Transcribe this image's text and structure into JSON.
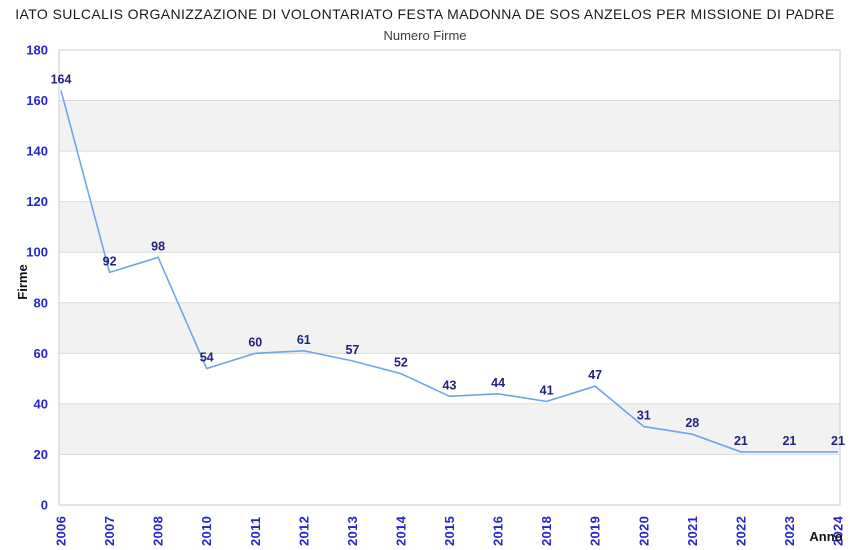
{
  "chart": {
    "title": "IATO SULCALIS ORGANIZZAZIONE DI VOLONTARIATO FESTA MADONNA DE SOS ANZELOS PER MISSIONE DI PADRE",
    "subtitle": "Numero Firme"
  },
  "chart_data": {
    "type": "line",
    "title": "IATO SULCALIS ORGANIZZAZIONE DI VOLONTARIATO FESTA MADONNA DE SOS ANZELOS PER MISSIONE DI PADRE",
    "subtitle": "Numero Firme",
    "xlabel": "Anno",
    "ylabel": "Firme",
    "categories": [
      "2006",
      "2007",
      "2008",
      "2010",
      "2011",
      "2012",
      "2013",
      "2014",
      "2015",
      "2016",
      "2018",
      "2019",
      "2020",
      "2021",
      "2022",
      "2023",
      "2024"
    ],
    "values": [
      164,
      92,
      98,
      54,
      60,
      61,
      57,
      52,
      43,
      44,
      41,
      47,
      31,
      28,
      21,
      21,
      21
    ],
    "ylim": [
      0,
      180
    ],
    "ytick_step": 20,
    "yticks": [
      0,
      20,
      40,
      60,
      80,
      100,
      120,
      140,
      160,
      180
    ],
    "grid": "horizontal-alternating-bands",
    "legend": "none",
    "markers": "none",
    "data_labels": "above-points",
    "colors": {
      "line": "#6fa5e8",
      "tick_label": "#2525cc",
      "data_label": "#23237d",
      "band_gray": "#f2f2f2",
      "gridline": "#dcdcdc",
      "plot_border": "#c9c9c9",
      "title_text": "#1a1a1a",
      "axis_title_text": "#111111",
      "background": "#ffffff"
    }
  }
}
